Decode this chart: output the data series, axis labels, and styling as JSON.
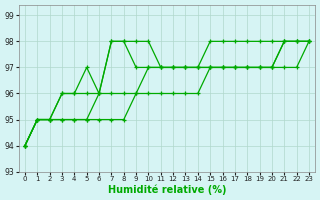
{
  "title": "",
  "xlabel": "Humidité relative (%)",
  "ylabel": "",
  "background_color": "#d6f4f4",
  "grid_color": "#b0d8cc",
  "line_color": "#00aa00",
  "ylim": [
    93,
    99.4
  ],
  "xlim": [
    -0.5,
    23.5
  ],
  "yticks": [
    93,
    94,
    95,
    96,
    97,
    98,
    99
  ],
  "xticks": [
    0,
    1,
    2,
    3,
    4,
    5,
    6,
    7,
    8,
    9,
    10,
    11,
    12,
    13,
    14,
    15,
    16,
    17,
    18,
    19,
    20,
    21,
    22,
    23
  ],
  "series": [
    [
      94,
      95,
      95,
      96,
      96,
      97,
      96,
      98,
      98,
      97,
      97,
      97,
      97,
      97,
      97,
      98,
      98,
      98,
      98,
      98,
      98,
      98,
      98,
      98
    ],
    [
      94,
      95,
      95,
      96,
      96,
      96,
      96,
      98,
      98,
      98,
      98,
      97,
      97,
      97,
      97,
      97,
      97,
      97,
      97,
      97,
      97,
      98,
      98,
      98
    ],
    [
      94,
      95,
      95,
      95,
      95,
      95,
      96,
      96,
      96,
      96,
      97,
      97,
      97,
      97,
      97,
      97,
      97,
      97,
      97,
      97,
      97,
      98,
      98,
      98
    ],
    [
      94,
      95,
      95,
      95,
      95,
      95,
      95,
      95,
      95,
      96,
      96,
      96,
      96,
      96,
      96,
      97,
      97,
      97,
      97,
      97,
      97,
      97,
      97,
      98
    ]
  ]
}
